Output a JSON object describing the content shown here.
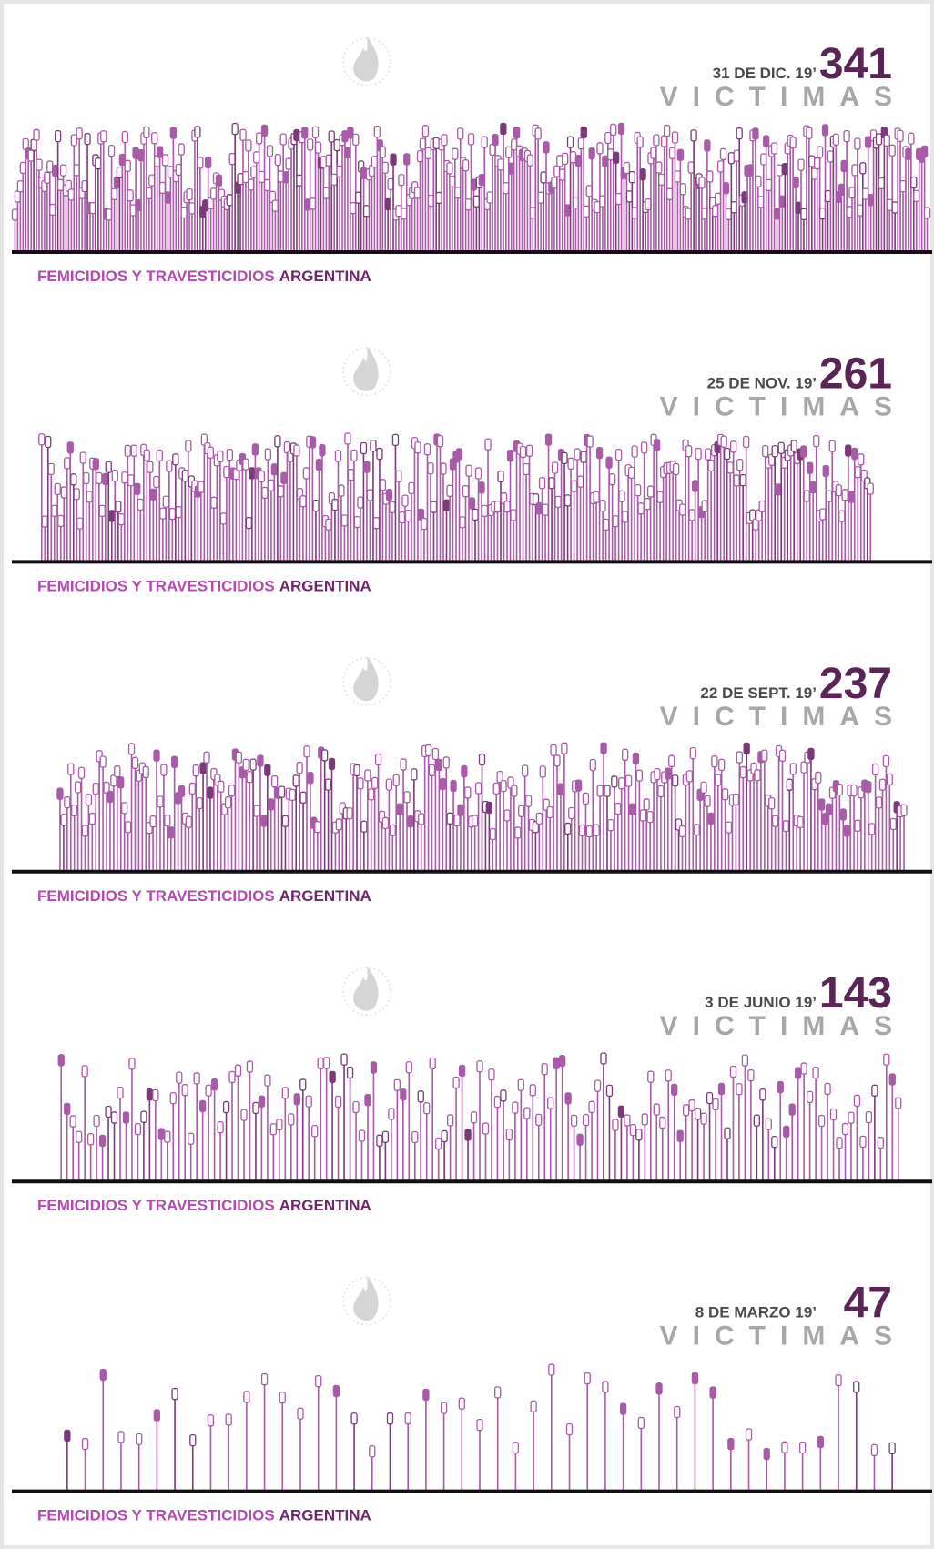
{
  "panels": [
    {
      "date": "31 DE DIC. 19’",
      "count": 341,
      "label": "VICTIMAS",
      "footer": {
        "main": "FEMICIDIOS Y TRAVESTICIDIOS",
        "country": "ARGENTINA"
      }
    },
    {
      "date": "25 DE NOV. 19’",
      "count": 261,
      "label": "VICTIMAS",
      "footer": {
        "main": "FEMICIDIOS Y TRAVESTICIDIOS",
        "country": "ARGENTINA"
      }
    },
    {
      "date": "22 DE SEPT. 19’",
      "count": 237,
      "label": "VICTIMAS",
      "footer": {
        "main": "FEMICIDIOS Y TRAVESTICIDIOS",
        "country": "ARGENTINA"
      }
    },
    {
      "date": "3 DE JUNIO 19’",
      "count": 143,
      "label": "VICTIMAS",
      "footer": {
        "main": "FEMICIDIOS Y TRAVESTICIDIOS",
        "country": "ARGENTINA"
      }
    },
    {
      "date": "8 DE MARZO 19’",
      "count": 47,
      "label": "VICTIMAS",
      "footer": {
        "main": "FEMICIDIOS Y TRAVESTICIDIOS",
        "country": "ARGENTINA"
      }
    }
  ]
}
